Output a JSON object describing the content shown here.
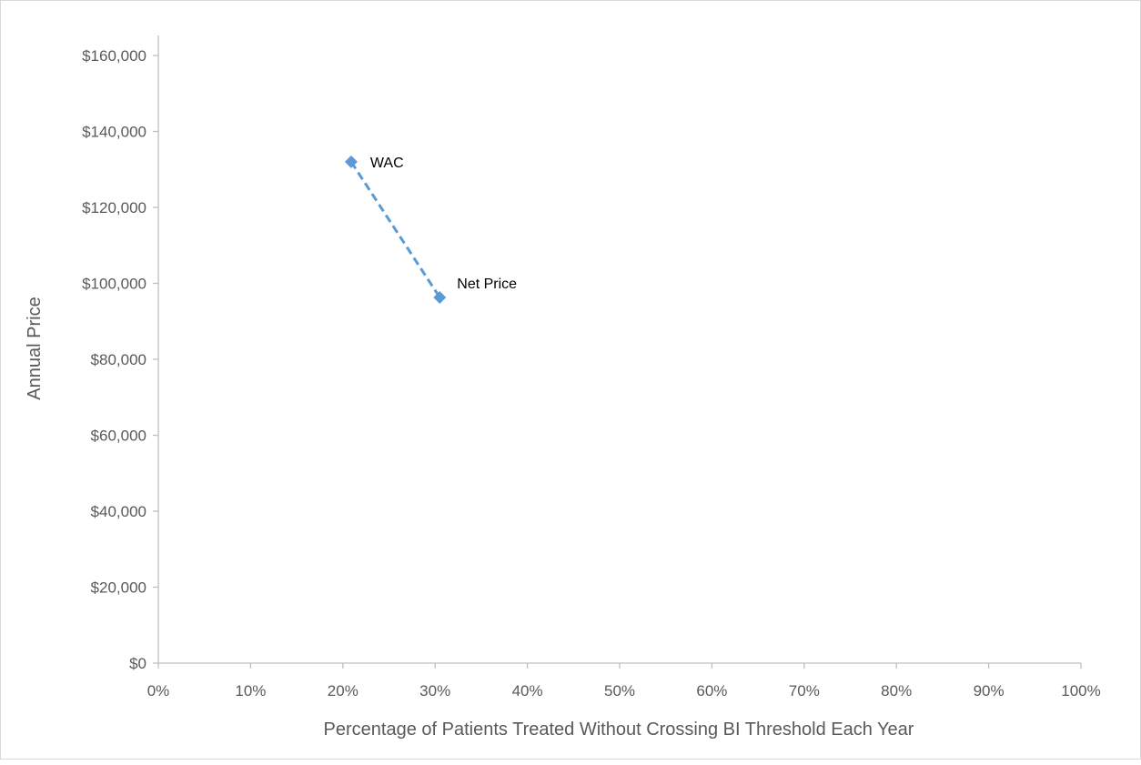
{
  "chart_data": {
    "type": "scatter",
    "title": "",
    "xlabel": "Percentage of Patients Treated Without Crossing BI Threshold Each Year",
    "ylabel": "Annual Price",
    "xlim": [
      0,
      100
    ],
    "ylim": [
      0,
      160000
    ],
    "x_ticks": [
      0,
      10,
      20,
      30,
      40,
      50,
      60,
      70,
      80,
      90,
      100
    ],
    "x_tick_labels": [
      "0%",
      "10%",
      "20%",
      "30%",
      "40%",
      "50%",
      "60%",
      "70%",
      "80%",
      "90%",
      "100%"
    ],
    "y_ticks": [
      0,
      20000,
      40000,
      60000,
      80000,
      100000,
      120000,
      140000,
      160000
    ],
    "y_tick_labels": [
      "$0",
      "$20,000",
      "$40,000",
      "$60,000",
      "$80,000",
      "$100,000",
      "$120,000",
      "$140,000",
      "$160,000"
    ],
    "grid": false,
    "legend": "none",
    "series": [
      {
        "points": [
          {
            "label": "WAC",
            "x": 20.9,
            "y": 132000
          },
          {
            "label": "Net Price",
            "x": 30.5,
            "y": 96300
          }
        ],
        "line_style": "dashed",
        "marker": "diamond",
        "color": "#5b9bd5"
      }
    ],
    "colors": {
      "axis": "#bfbfbf",
      "text": "#595959",
      "label": "#000000"
    }
  }
}
